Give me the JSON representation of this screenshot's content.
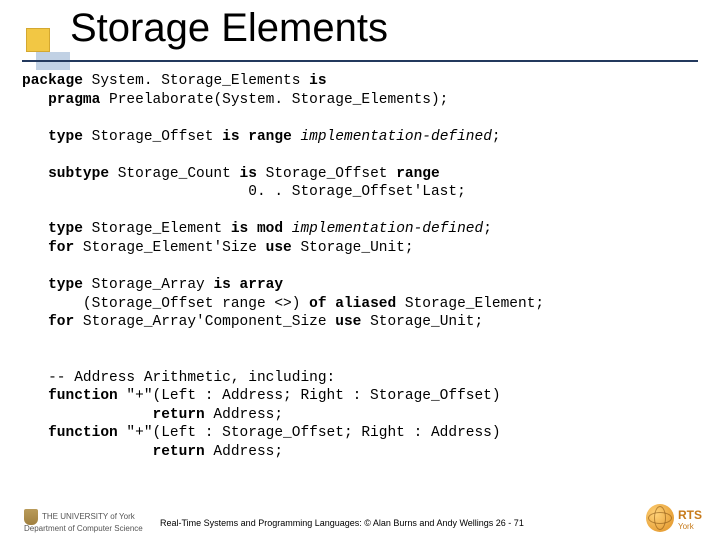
{
  "title": "Storage Elements",
  "code": {
    "l1a": "package",
    "l1b": " System. Storage_Elements ",
    "l1c": "is",
    "l2a": "   pragma",
    "l2b": " Preelaborate(System. Storage_Elements);",
    "l3": " ",
    "l4a": "   type",
    "l4b": " Storage_Offset ",
    "l4c": "is range ",
    "l4d": "implementation-defined",
    "l4e": ";",
    "l5": " ",
    "l6a": "   subtype",
    "l6b": " Storage_Count ",
    "l6c": "is",
    "l6d": " Storage_Offset ",
    "l6e": "range",
    "l7": "                          0. . Storage_Offset'Last;",
    "l8": " ",
    "l9a": "   type",
    "l9b": " Storage_Element ",
    "l9c": "is mod ",
    "l9d": "implementation-defined",
    "l9e": ";",
    "l10a": "   for",
    "l10b": " Storage_Element'Size ",
    "l10c": "use",
    "l10d": " Storage_Unit;",
    "l11": " ",
    "l12a": "   type",
    "l12b": " Storage_Array ",
    "l12c": "is array",
    "l13a": "       (Storage_Offset range <>) ",
    "l13b": "of aliased",
    "l13c": " Storage_Element;",
    "l14a": "   for",
    "l14b": " Storage_Array'Component_Size ",
    "l14c": "use",
    "l14d": " Storage_Unit;",
    "l15": " ",
    "l16": " ",
    "l17": "   -- Address Arithmetic, including:",
    "l18a": "   function",
    "l18b": " \"+\"(Left : Address; Right : Storage_Offset)",
    "l19a": "               return",
    "l19b": " Address;",
    "l20a": "   function",
    "l20b": " \"+\"(Left : Storage_Offset; Right : Address)",
    "l21a": "               return",
    "l21b": " Address;"
  },
  "footer_text": "Real-Time Systems and Programming Languages: © Alan Burns and Andy Wellings  26 - 71",
  "york": {
    "line1": "THE UNIVERSITY of York",
    "line2": "Department of Computer Science"
  },
  "rts": {
    "main": "RTS",
    "sub": "York"
  },
  "colors": {
    "underline": "#23395d",
    "yellow_box": "#f2c744",
    "blue_shadow": "#9fb9d6"
  }
}
